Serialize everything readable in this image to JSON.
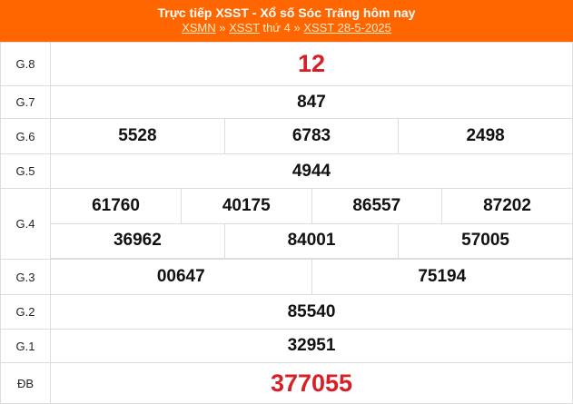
{
  "header": {
    "title": "Trực tiếp XSST - Xổ số Sóc Trăng hôm nay",
    "breadcrumb": {
      "link1": "XSMN",
      "sep1": " » ",
      "link2": "XSST",
      "text": " thứ 4 » ",
      "link3": "XSST 28-5-2025"
    }
  },
  "prizes": {
    "g8": {
      "label": "G.8",
      "values": [
        "12"
      ]
    },
    "g7": {
      "label": "G.7",
      "values": [
        "847"
      ]
    },
    "g6": {
      "label": "G.6",
      "values": [
        "5528",
        "6783",
        "2498"
      ]
    },
    "g5": {
      "label": "G.5",
      "values": [
        "4944"
      ]
    },
    "g4": {
      "label": "G.4",
      "values": [
        "61760",
        "40175",
        "86557",
        "87202",
        "36962",
        "84001",
        "57005"
      ]
    },
    "g3": {
      "label": "G.3",
      "values": [
        "00647",
        "75194"
      ]
    },
    "g2": {
      "label": "G.2",
      "values": [
        "85540"
      ]
    },
    "g1": {
      "label": "G.1",
      "values": [
        "32951"
      ]
    },
    "db": {
      "label": "ĐB",
      "values": [
        "377055"
      ]
    }
  },
  "colors": {
    "header": "#ff6600",
    "highlight": "#d61f26"
  }
}
